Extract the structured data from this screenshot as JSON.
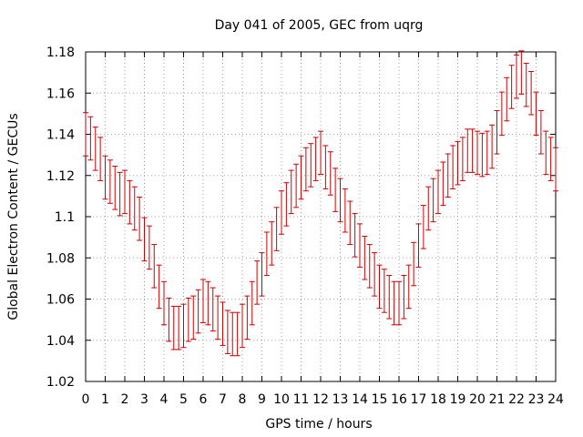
{
  "chart_data": {
    "type": "line",
    "title": "Day 041 of 2005, GEC from uqrg",
    "xlabel": "GPS time / hours",
    "ylabel": "Global Electron Content / GECUs",
    "xlim": [
      0,
      24
    ],
    "ylim": [
      1.02,
      1.18
    ],
    "grid": true,
    "x_ticks": [
      "0",
      "1",
      "2",
      "3",
      "4",
      "5",
      "6",
      "7",
      "8",
      "9",
      "10",
      "11",
      "12",
      "13",
      "14",
      "15",
      "16",
      "17",
      "18",
      "19",
      "20",
      "21",
      "22",
      "23",
      "24"
    ],
    "y_ticks": [
      "1.02",
      "1.04",
      "1.06",
      "1.08",
      "1.1",
      "1.12",
      "1.14",
      "1.16",
      "1.18"
    ],
    "error": 0.0105,
    "color": "#cc0000",
    "series": [
      {
        "name": "GEC",
        "x": [
          0,
          0.25,
          0.5,
          0.75,
          1,
          1.25,
          1.5,
          1.75,
          2,
          2.25,
          2.5,
          2.75,
          3,
          3.25,
          3.5,
          3.75,
          4,
          4.25,
          4.5,
          4.75,
          5,
          5.25,
          5.5,
          5.75,
          6,
          6.25,
          6.5,
          6.75,
          7,
          7.25,
          7.5,
          7.75,
          8,
          8.25,
          8.5,
          8.75,
          9,
          9.25,
          9.5,
          9.75,
          10,
          10.25,
          10.5,
          10.75,
          11,
          11.25,
          11.5,
          11.75,
          12,
          12.25,
          12.5,
          12.75,
          13,
          13.25,
          13.5,
          13.75,
          14,
          14.25,
          14.5,
          14.75,
          15,
          15.25,
          15.5,
          15.75,
          16,
          16.25,
          16.5,
          16.75,
          17,
          17.25,
          17.5,
          17.75,
          18,
          18.25,
          18.5,
          18.75,
          19,
          19.25,
          19.5,
          19.75,
          20,
          20.25,
          20.5,
          20.75,
          21,
          21.25,
          21.5,
          21.75,
          22,
          22.25,
          22.5,
          22.75,
          23,
          23.25,
          23.5,
          23.75,
          24
        ],
        "values": [
          1.14,
          1.138,
          1.133,
          1.128,
          1.119,
          1.117,
          1.114,
          1.111,
          1.112,
          1.107,
          1.104,
          1.099,
          1.089,
          1.085,
          1.076,
          1.066,
          1.058,
          1.05,
          1.046,
          1.046,
          1.047,
          1.05,
          1.051,
          1.054,
          1.059,
          1.058,
          1.055,
          1.051,
          1.048,
          1.044,
          1.043,
          1.043,
          1.047,
          1.051,
          1.058,
          1.068,
          1.072,
          1.082,
          1.087,
          1.094,
          1.102,
          1.106,
          1.112,
          1.115,
          1.119,
          1.123,
          1.125,
          1.128,
          1.131,
          1.124,
          1.121,
          1.113,
          1.108,
          1.103,
          1.097,
          1.091,
          1.086,
          1.08,
          1.076,
          1.072,
          1.066,
          1.064,
          1.061,
          1.058,
          1.058,
          1.061,
          1.066,
          1.077,
          1.086,
          1.095,
          1.104,
          1.108,
          1.112,
          1.116,
          1.12,
          1.124,
          1.126,
          1.128,
          1.132,
          1.132,
          1.131,
          1.13,
          1.131,
          1.134,
          1.141,
          1.15,
          1.157,
          1.163,
          1.168,
          1.17,
          1.164,
          1.16,
          1.15,
          1.141,
          1.131,
          1.128,
          1.123
        ]
      }
    ]
  }
}
